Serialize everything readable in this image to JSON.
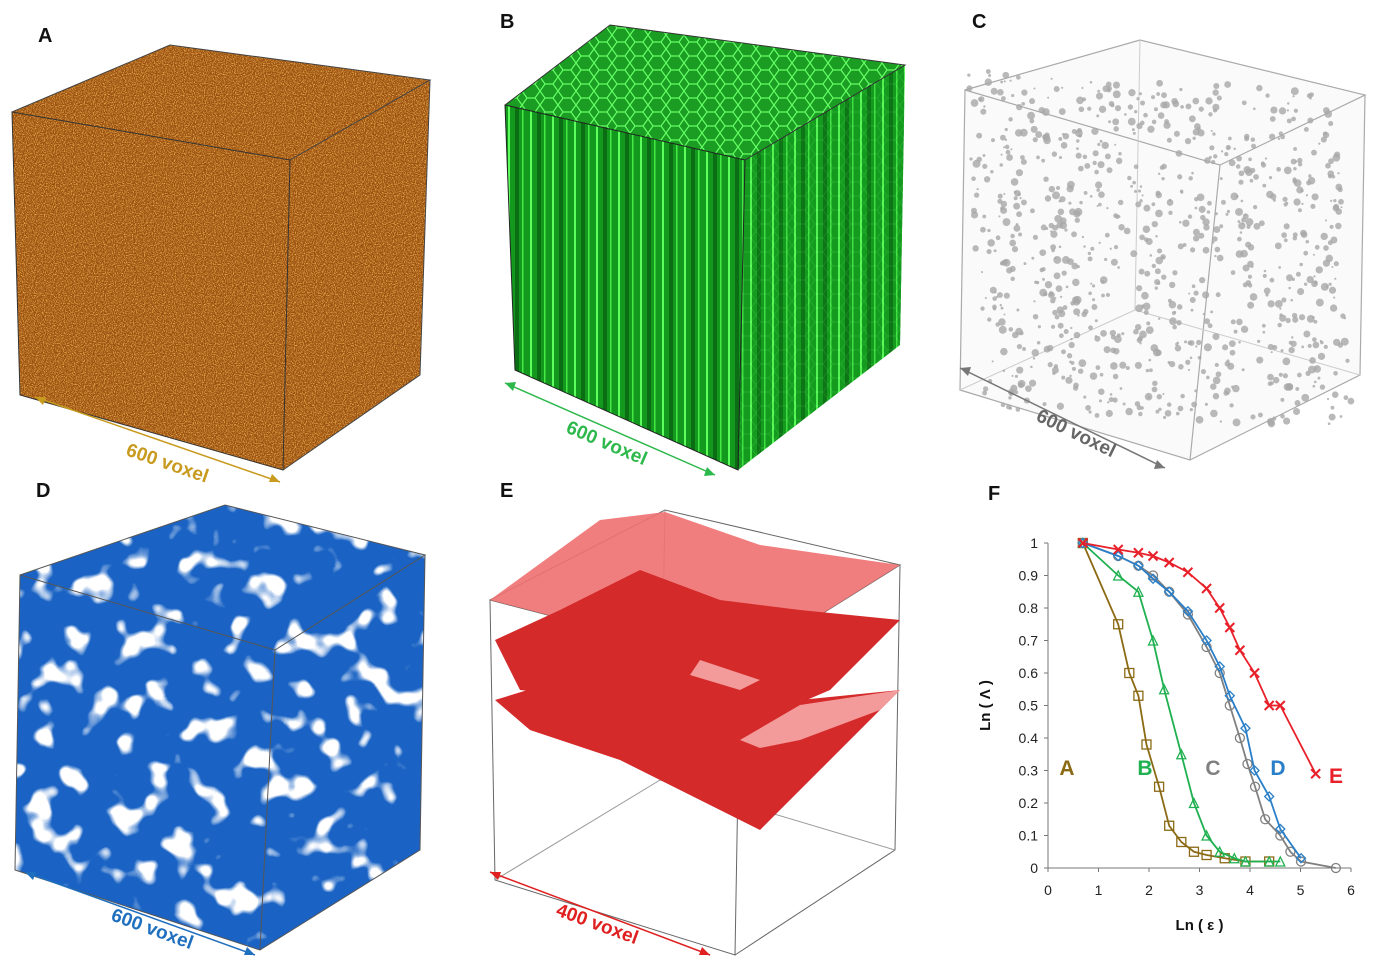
{
  "panels": [
    {
      "label": "A",
      "scale": "600 voxel"
    },
    {
      "label": "B",
      "scale": "600 voxel"
    },
    {
      "label": "C",
      "scale": "600 voxel"
    },
    {
      "label": "D",
      "scale": "600 voxel"
    },
    {
      "label": "E",
      "scale": "400 voxel"
    },
    {
      "label": "F"
    }
  ],
  "chart_data": {
    "type": "scatter",
    "x_label": "Ln ( ε )",
    "y_label": "Ln ( Λ )",
    "xlim": [
      0,
      6
    ],
    "ylim": [
      0,
      1
    ],
    "xticks": [
      0,
      1,
      2,
      3,
      4,
      5,
      6
    ],
    "yticks": [
      0,
      0.1,
      0.2,
      0.3,
      0.4,
      0.5,
      0.6,
      0.7,
      0.8,
      0.9,
      1
    ],
    "series": [
      {
        "name": "A",
        "color": "#8b6a14",
        "marker": "square",
        "x": [
          0.69,
          1.39,
          1.61,
          1.79,
          1.95,
          2.2,
          2.4,
          2.64,
          2.89,
          3.14,
          3.5,
          3.91,
          4.38
        ],
        "values": [
          1,
          0.75,
          0.6,
          0.53,
          0.38,
          0.25,
          0.13,
          0.08,
          0.05,
          0.04,
          0.03,
          0.02,
          0.02
        ]
      },
      {
        "name": "B",
        "color": "#1fb050",
        "marker": "triangle",
        "x": [
          0.69,
          1.39,
          1.79,
          2.08,
          2.3,
          2.64,
          2.89,
          3.14,
          3.4,
          3.69,
          3.91,
          4.38,
          4.6
        ],
        "values": [
          1,
          0.9,
          0.85,
          0.7,
          0.55,
          0.35,
          0.2,
          0.1,
          0.05,
          0.03,
          0.02,
          0.02,
          0.02
        ]
      },
      {
        "name": "C",
        "color": "#808080",
        "marker": "circle",
        "x": [
          0.69,
          1.39,
          1.79,
          2.08,
          2.4,
          2.77,
          3.14,
          3.4,
          3.6,
          3.8,
          3.95,
          4.1,
          4.3,
          4.6,
          4.8,
          5.01,
          5.7
        ],
        "values": [
          1,
          0.96,
          0.93,
          0.9,
          0.85,
          0.78,
          0.68,
          0.6,
          0.5,
          0.4,
          0.32,
          0.25,
          0.15,
          0.1,
          0.05,
          0.02,
          0
        ]
      },
      {
        "name": "D",
        "color": "#2a7fc8",
        "marker": "diamond",
        "x": [
          0.69,
          1.39,
          1.79,
          2.08,
          2.4,
          2.77,
          3.14,
          3.4,
          3.6,
          3.91,
          4.09,
          4.38,
          4.6,
          5.01
        ],
        "values": [
          1,
          0.96,
          0.93,
          0.89,
          0.85,
          0.79,
          0.7,
          0.62,
          0.53,
          0.43,
          0.3,
          0.22,
          0.12,
          0.03
        ]
      },
      {
        "name": "E",
        "color": "#e8202a",
        "marker": "x",
        "x": [
          0.69,
          1.39,
          1.79,
          2.08,
          2.4,
          2.77,
          3.14,
          3.4,
          3.6,
          3.8,
          4.09,
          4.38,
          4.6,
          5.3
        ],
        "values": [
          1,
          0.98,
          0.97,
          0.96,
          0.94,
          0.91,
          0.86,
          0.8,
          0.74,
          0.67,
          0.6,
          0.5,
          0.5,
          0.29
        ]
      }
    ]
  }
}
